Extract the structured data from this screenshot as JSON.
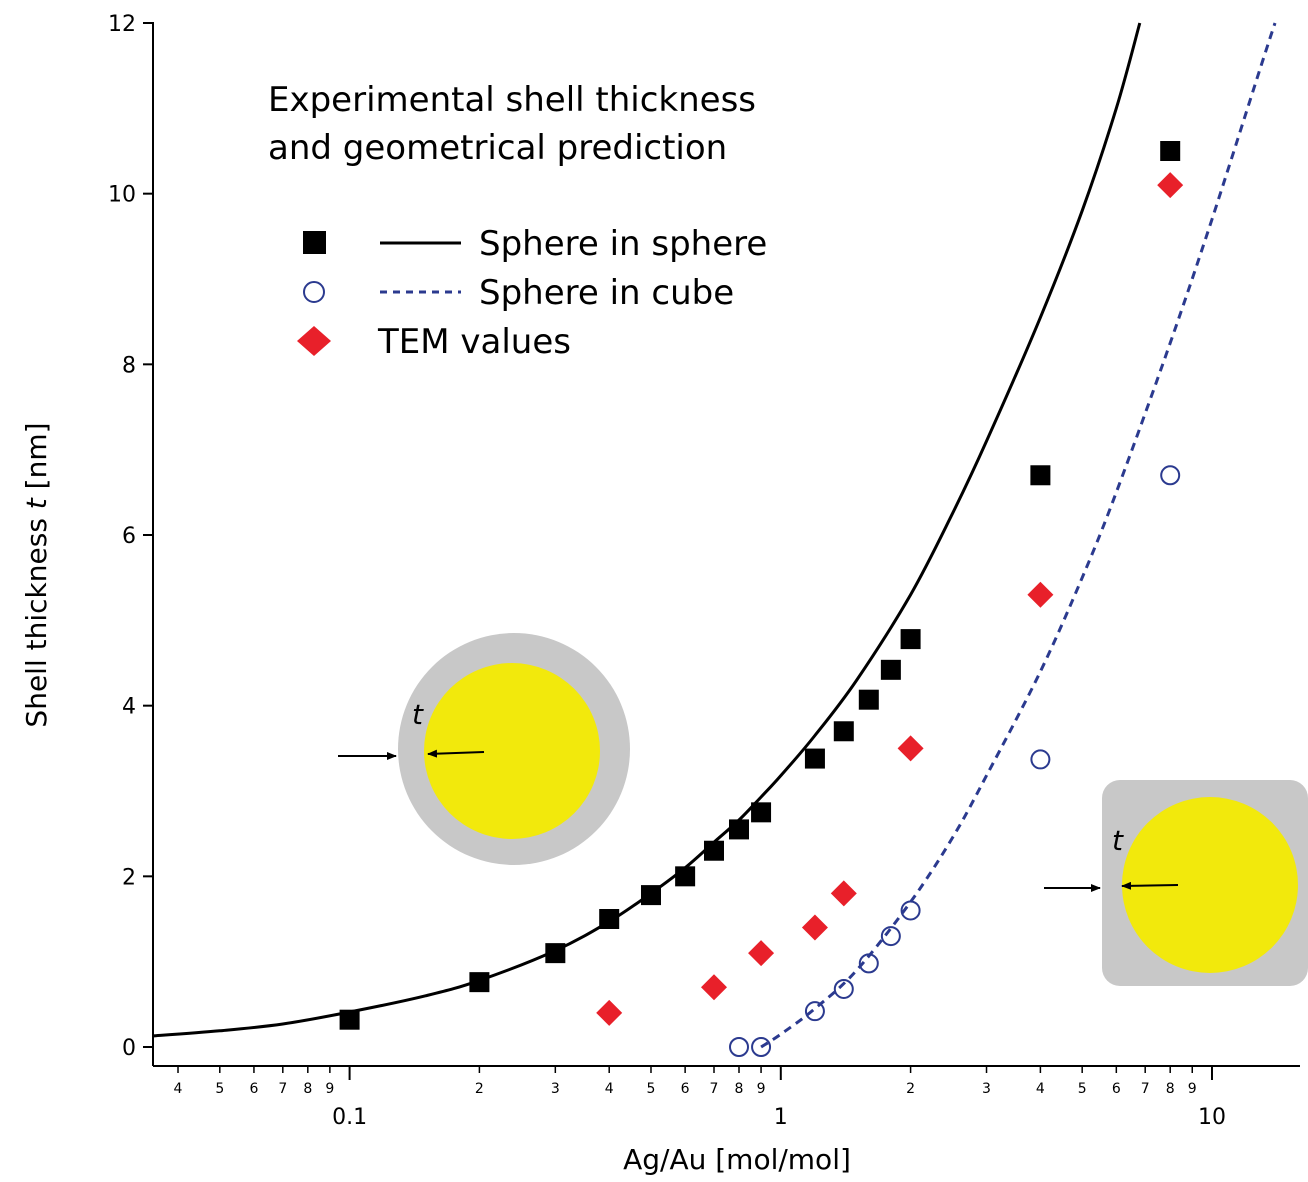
{
  "chart_data": {
    "type": "scatter",
    "title_lines": [
      "Experimental shell thickness",
      "and geometrical prediction"
    ],
    "xlabel": "Ag/Au [mol/mol]",
    "ylabel_parts": [
      "Shell thickness ",
      "t",
      " [nm]"
    ],
    "x_scale": "log",
    "xlim": [
      0.035,
      16
    ],
    "ylim": [
      0,
      12
    ],
    "y_ticks": [
      "0",
      "2",
      "4",
      "6",
      "8",
      "10",
      "12"
    ],
    "x_major_ticks": [
      {
        "value": 0.1,
        "label": "0.1"
      },
      {
        "value": 1,
        "label": "1"
      },
      {
        "value": 10,
        "label": "10"
      }
    ],
    "x_minor_ticks": [
      {
        "value": 0.04,
        "label": "4"
      },
      {
        "value": 0.05,
        "label": "5"
      },
      {
        "value": 0.06,
        "label": "6"
      },
      {
        "value": 0.07,
        "label": "7"
      },
      {
        "value": 0.08,
        "label": "8"
      },
      {
        "value": 0.09,
        "label": "9"
      },
      {
        "value": 0.2,
        "label": "2"
      },
      {
        "value": 0.3,
        "label": "3"
      },
      {
        "value": 0.4,
        "label": "4"
      },
      {
        "value": 0.5,
        "label": "5"
      },
      {
        "value": 0.6,
        "label": "6"
      },
      {
        "value": 0.7,
        "label": "7"
      },
      {
        "value": 0.8,
        "label": "8"
      },
      {
        "value": 0.9,
        "label": "9"
      },
      {
        "value": 2,
        "label": "2"
      },
      {
        "value": 3,
        "label": "3"
      },
      {
        "value": 4,
        "label": "4"
      },
      {
        "value": 5,
        "label": "5"
      },
      {
        "value": 6,
        "label": "6"
      },
      {
        "value": 7,
        "label": "7"
      },
      {
        "value": 8,
        "label": "8"
      },
      {
        "value": 9,
        "label": "9"
      }
    ],
    "legend": {
      "placement": "top-left",
      "entries": [
        {
          "marker": "square",
          "line": "solid",
          "label": "Sphere in sphere"
        },
        {
          "marker": "circle",
          "line": "dashed",
          "label": "Sphere in cube"
        },
        {
          "marker": "diamond",
          "line": "none",
          "label": "TEM values"
        }
      ]
    },
    "series": [
      {
        "name": "Sphere in sphere",
        "marker": "square",
        "color": "#000000",
        "points": [
          {
            "x": 0.1,
            "y": 0.32
          },
          {
            "x": 0.2,
            "y": 0.76
          },
          {
            "x": 0.3,
            "y": 1.1
          },
          {
            "x": 0.4,
            "y": 1.5
          },
          {
            "x": 0.5,
            "y": 1.78
          },
          {
            "x": 0.6,
            "y": 2.0
          },
          {
            "x": 0.7,
            "y": 2.3
          },
          {
            "x": 0.8,
            "y": 2.55
          },
          {
            "x": 0.9,
            "y": 2.75
          },
          {
            "x": 1.2,
            "y": 3.38
          },
          {
            "x": 1.4,
            "y": 3.7
          },
          {
            "x": 1.6,
            "y": 4.07
          },
          {
            "x": 1.8,
            "y": 4.42
          },
          {
            "x": 2.0,
            "y": 4.78
          },
          {
            "x": 4.0,
            "y": 6.7
          },
          {
            "x": 8.0,
            "y": 10.5
          }
        ]
      },
      {
        "name": "Sphere in cube",
        "marker": "circle",
        "color": "#2b3a8f",
        "points": [
          {
            "x": 0.8,
            "y": 0.0
          },
          {
            "x": 0.9,
            "y": 0.0
          },
          {
            "x": 1.2,
            "y": 0.42
          },
          {
            "x": 1.4,
            "y": 0.68
          },
          {
            "x": 1.6,
            "y": 0.98
          },
          {
            "x": 1.8,
            "y": 1.3
          },
          {
            "x": 2.0,
            "y": 1.6
          },
          {
            "x": 4.0,
            "y": 3.37
          },
          {
            "x": 8.0,
            "y": 6.7
          }
        ]
      },
      {
        "name": "TEM values",
        "marker": "diamond",
        "color": "#e8202a",
        "points": [
          {
            "x": 0.4,
            "y": 0.4
          },
          {
            "x": 0.7,
            "y": 0.7
          },
          {
            "x": 0.9,
            "y": 1.1
          },
          {
            "x": 1.2,
            "y": 1.4
          },
          {
            "x": 1.4,
            "y": 1.8
          },
          {
            "x": 2.0,
            "y": 3.5
          },
          {
            "x": 4.0,
            "y": 5.3
          },
          {
            "x": 8.0,
            "y": 10.1
          }
        ]
      }
    ],
    "curves": [
      {
        "name": "Sphere in sphere",
        "style": "solid",
        "color": "#000000",
        "points": [
          {
            "x": 0.035,
            "y": 0.13
          },
          {
            "x": 0.05,
            "y": 0.19
          },
          {
            "x": 0.07,
            "y": 0.27
          },
          {
            "x": 0.1,
            "y": 0.41
          },
          {
            "x": 0.15,
            "y": 0.6
          },
          {
            "x": 0.2,
            "y": 0.78
          },
          {
            "x": 0.3,
            "y": 1.13
          },
          {
            "x": 0.4,
            "y": 1.47
          },
          {
            "x": 0.5,
            "y": 1.8
          },
          {
            "x": 0.6,
            "y": 2.1
          },
          {
            "x": 0.7,
            "y": 2.4
          },
          {
            "x": 0.8,
            "y": 2.66
          },
          {
            "x": 0.9,
            "y": 2.93
          },
          {
            "x": 1.0,
            "y": 3.18
          },
          {
            "x": 1.2,
            "y": 3.65
          },
          {
            "x": 1.5,
            "y": 4.3
          },
          {
            "x": 2.0,
            "y": 5.3
          },
          {
            "x": 2.5,
            "y": 6.25
          },
          {
            "x": 3.0,
            "y": 7.1
          },
          {
            "x": 4.0,
            "y": 8.55
          },
          {
            "x": 5.0,
            "y": 9.8
          },
          {
            "x": 6.0,
            "y": 11.0
          },
          {
            "x": 6.8,
            "y": 12.0
          }
        ]
      },
      {
        "name": "Sphere in cube",
        "style": "dashed",
        "color": "#2b3a8f",
        "points": [
          {
            "x": 0.9,
            "y": 0.0
          },
          {
            "x": 1.0,
            "y": 0.15
          },
          {
            "x": 1.2,
            "y": 0.45
          },
          {
            "x": 1.5,
            "y": 0.9
          },
          {
            "x": 2.0,
            "y": 1.7
          },
          {
            "x": 2.5,
            "y": 2.45
          },
          {
            "x": 3.0,
            "y": 3.18
          },
          {
            "x": 4.0,
            "y": 4.4
          },
          {
            "x": 5.0,
            "y": 5.5
          },
          {
            "x": 6.0,
            "y": 6.5
          },
          {
            "x": 8.0,
            "y": 8.25
          },
          {
            "x": 10.0,
            "y": 9.7
          },
          {
            "x": 13.0,
            "y": 11.5
          },
          {
            "x": 14.0,
            "y": 12.0
          }
        ]
      }
    ],
    "insets": [
      {
        "shape": "sphere-in-sphere",
        "label": "t"
      },
      {
        "shape": "sphere-in-cube",
        "label": "t"
      }
    ],
    "colors": {
      "shell": "#c8c8c8",
      "core": "#f2e90c",
      "circle_series": "#2b3a8f",
      "diamond_series": "#e8202a"
    }
  }
}
